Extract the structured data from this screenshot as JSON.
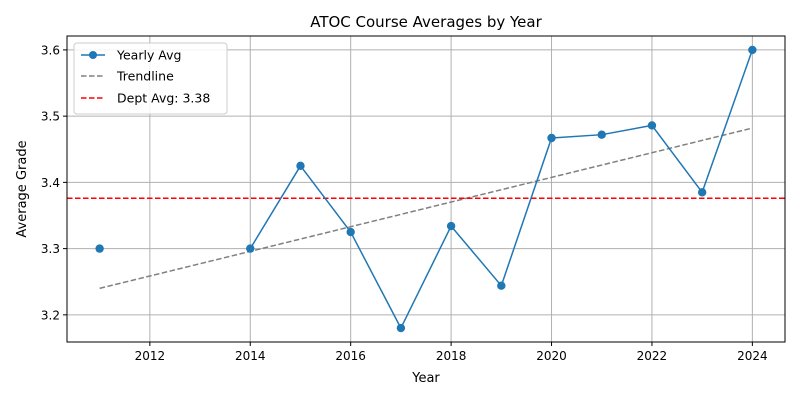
{
  "chart_data": {
    "type": "line",
    "title": "ATOC Course Averages by Year",
    "xlabel": "Year",
    "ylabel": "Average Grade",
    "xlim": [
      2010.35,
      2024.65
    ],
    "ylim": [
      3.159,
      3.621
    ],
    "x_ticks": [
      2012,
      2014,
      2016,
      2018,
      2020,
      2022,
      2024
    ],
    "y_ticks": [
      3.2,
      3.3,
      3.4,
      3.5,
      3.6
    ],
    "grid": true,
    "legend_position": "top-left",
    "series": [
      {
        "name": "Yearly Avg",
        "style": "solid-line-circle-markers",
        "color": "#1f77b4",
        "points": [
          {
            "x": 2011,
            "y": 3.3
          },
          {
            "x": 2014,
            "y": 3.3
          },
          {
            "x": 2015,
            "y": 3.425
          },
          {
            "x": 2016,
            "y": 3.325
          },
          {
            "x": 2017,
            "y": 3.18
          },
          {
            "x": 2018,
            "y": 3.334
          },
          {
            "x": 2019,
            "y": 3.244
          },
          {
            "x": 2020,
            "y": 3.467
          },
          {
            "x": 2021,
            "y": 3.472
          },
          {
            "x": 2022,
            "y": 3.486
          },
          {
            "x": 2023,
            "y": 3.385
          },
          {
            "x": 2024,
            "y": 3.6
          }
        ]
      },
      {
        "name": "Trendline",
        "style": "dashed",
        "color": "#808080",
        "points": [
          {
            "x": 2011,
            "y": 3.24
          },
          {
            "x": 2024,
            "y": 3.482
          }
        ]
      },
      {
        "name": "Dept Avg: 3.38",
        "style": "dashed-horizontal",
        "color": "#ff0000",
        "value": 3.376
      }
    ]
  }
}
